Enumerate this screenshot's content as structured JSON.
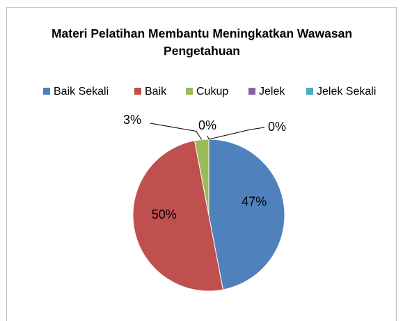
{
  "chart_data": {
    "type": "pie",
    "title": "Materi Pelatihan Membantu Meningkatkan Wawasan Pengetahuan",
    "categories": [
      "Baik Sekali",
      "Baik",
      "Cukup",
      "Jelek",
      "Jelek Sekali"
    ],
    "values": [
      47,
      50,
      3,
      0,
      0
    ],
    "value_labels": [
      "47%",
      "50%",
      "3%",
      "0%",
      "0%"
    ],
    "colors": [
      "#4f81bd",
      "#c0504d",
      "#9bbb59",
      "#8064a2",
      "#4bacc6"
    ],
    "legend": "top"
  }
}
